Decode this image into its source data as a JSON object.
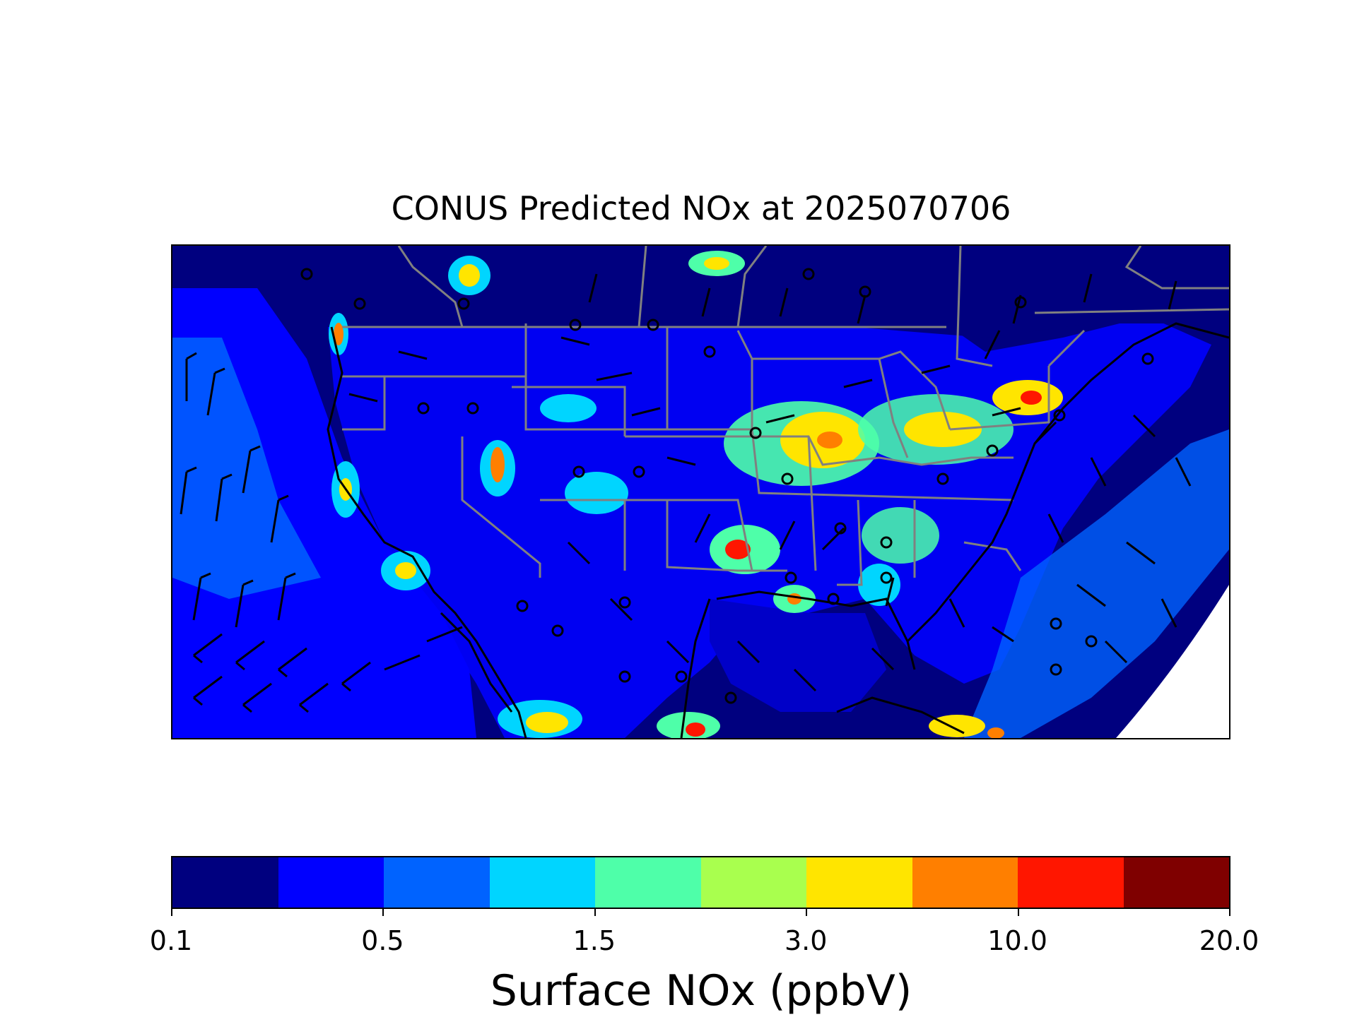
{
  "title": "CONUS Predicted NOx at 2025070706",
  "colorbar": {
    "label": "Surface NOx (ppbV)",
    "colors": [
      "#00007f",
      "#0000ff",
      "#0063ff",
      "#00d5ff",
      "#4effa9",
      "#a9ff4e",
      "#ffe500",
      "#ff7f00",
      "#ff1600",
      "#7f0000"
    ],
    "tick_labels": [
      "0.1",
      "0.5",
      "1.5",
      "3.0",
      "10.0",
      "20.0"
    ]
  },
  "map": {
    "background_color": "#00007f",
    "coastline_color": "#000000",
    "state_border_color": "#808080",
    "wind_barb_color": "#000000",
    "no_data_color": "#ffffff"
  }
}
